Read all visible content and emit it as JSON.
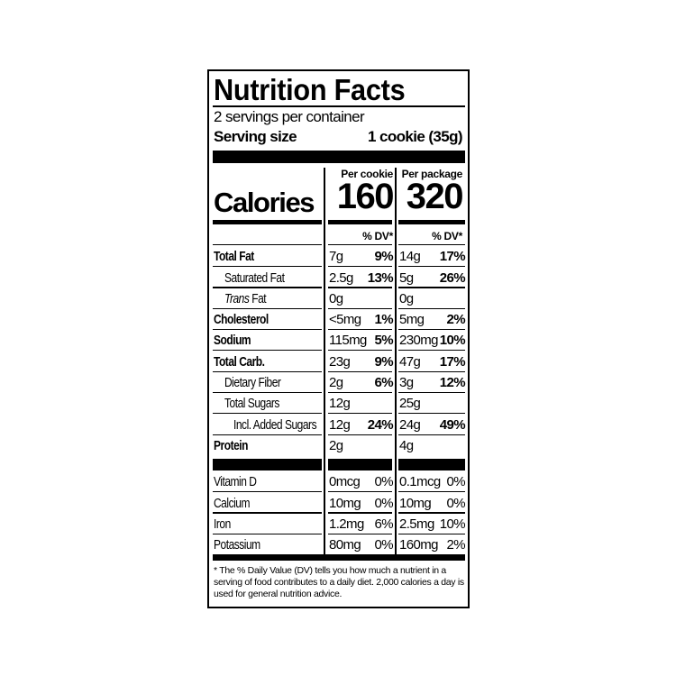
{
  "title": "Nutrition Facts",
  "servings_per_container": "2 servings per container",
  "serving_size": {
    "label": "Serving size",
    "value": "1 cookie (35g)"
  },
  "calories": {
    "label": "Calories",
    "per_serving_header": "Per cookie",
    "per_package_header": "Per package",
    "per_serving": "160",
    "per_package": "320"
  },
  "dv_header": "% DV*",
  "nutrients": [
    {
      "name": "Total Fat",
      "bold": true,
      "indent": 0,
      "s_amt": "7g",
      "s_dv": "9%",
      "p_amt": "14g",
      "p_dv": "17%"
    },
    {
      "name": "Saturated Fat",
      "bold": false,
      "indent": 1,
      "s_amt": "2.5g",
      "s_dv": "13%",
      "p_amt": "5g",
      "p_dv": "26%"
    },
    {
      "name": "Trans Fat",
      "italic_prefix": "Trans",
      "bold": false,
      "indent": 1,
      "s_amt": "0g",
      "s_dv": "",
      "p_amt": "0g",
      "p_dv": ""
    },
    {
      "name": "Cholesterol",
      "bold": true,
      "indent": 0,
      "s_amt": "<5mg",
      "s_dv": "1%",
      "p_amt": "5mg",
      "p_dv": "2%"
    },
    {
      "name": "Sodium",
      "bold": true,
      "indent": 0,
      "s_amt": "115mg",
      "s_dv": "5%",
      "p_amt": "230mg",
      "p_dv": "10%"
    },
    {
      "name": "Total Carb.",
      "bold": true,
      "indent": 0,
      "s_amt": "23g",
      "s_dv": "9%",
      "p_amt": "47g",
      "p_dv": "17%"
    },
    {
      "name": "Dietary Fiber",
      "bold": false,
      "indent": 1,
      "s_amt": "2g",
      "s_dv": "6%",
      "p_amt": "3g",
      "p_dv": "12%"
    },
    {
      "name": "Total Sugars",
      "bold": false,
      "indent": 1,
      "s_amt": "12g",
      "s_dv": "",
      "p_amt": "25g",
      "p_dv": ""
    },
    {
      "name": "Incl. Added Sugars",
      "bold": false,
      "indent": 2,
      "s_amt": "12g",
      "s_dv": "24%",
      "p_amt": "24g",
      "p_dv": "49%"
    },
    {
      "name": "Protein",
      "bold": true,
      "indent": 0,
      "s_amt": "2g",
      "s_dv": "",
      "p_amt": "4g",
      "p_dv": ""
    }
  ],
  "vitamins": [
    {
      "name": "Vitamin D",
      "s_amt": "0mcg",
      "s_dv": "0%",
      "p_amt": "0.1mcg",
      "p_dv": "0%"
    },
    {
      "name": "Calcium",
      "s_amt": "10mg",
      "s_dv": "0%",
      "p_amt": "10mg",
      "p_dv": "0%"
    },
    {
      "name": "Iron",
      "s_amt": "1.2mg",
      "s_dv": "6%",
      "p_amt": "2.5mg",
      "p_dv": "10%"
    },
    {
      "name": "Potassium",
      "s_amt": "80mg",
      "s_dv": "0%",
      "p_amt": "160mg",
      "p_dv": "2%"
    }
  ],
  "footnote": "* The % Daily Value (DV) tells you how much a nutrient in a serving of food contributes to a daily diet. 2,000 calories a day is used for general nutrition advice."
}
